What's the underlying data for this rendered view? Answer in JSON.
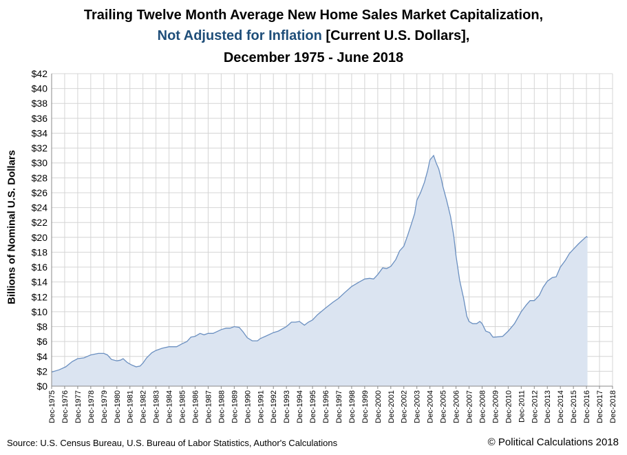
{
  "title": {
    "line1": "Trailing Twelve Month Average New Home Sales Market Capitalization,",
    "line2_accent": "Not Adjusted for Inflation",
    "line2_rest": " [Current U.S. Dollars],",
    "line3": "December 1975 - June 2018"
  },
  "footer": {
    "source": "U.S. Census Bureau, U.S. Bureau of Labor Statistics, Author's Calculations",
    "copyright": "© Political Calculations 2018"
  },
  "colors": {
    "line": "#6a8fc0",
    "fill": "#dbe4f1",
    "grid": "#d4d4d4",
    "axis": "#888888",
    "accent": "#1f4e79"
  },
  "chart_data": {
    "type": "area",
    "title": "Trailing Twelve Month Average New Home Sales Market Capitalization, Not Adjusted for Inflation [Current U.S. Dollars], December 1975 - June 2018",
    "xlabel": "",
    "ylabel": "Billions of Nominal U.S. Dollars",
    "xlim": [
      1975.92,
      2018.92
    ],
    "ylim": [
      0,
      42
    ],
    "grid": true,
    "yticks": [
      0,
      2,
      4,
      6,
      8,
      10,
      12,
      14,
      16,
      18,
      20,
      22,
      24,
      26,
      28,
      30,
      32,
      34,
      36,
      38,
      40,
      42
    ],
    "ytick_labels": [
      "$0",
      "$2",
      "$4",
      "$6",
      "$8",
      "$10",
      "$12",
      "$14",
      "$16",
      "$18",
      "$20",
      "$22",
      "$24",
      "$26",
      "$28",
      "$30",
      "$32",
      "$34",
      "$36",
      "$38",
      "$40",
      "$42"
    ],
    "xtick_labels": [
      "Dec-1975",
      "Dec-1976",
      "Dec-1977",
      "Dec-1978",
      "Dec-1979",
      "Dec-1980",
      "Dec-1981",
      "Dec-1982",
      "Dec-1983",
      "Dec-1984",
      "Dec-1985",
      "Dec-1986",
      "Dec-1987",
      "Dec-1988",
      "Dec-1989",
      "Dec-1990",
      "Dec-1991",
      "Dec-1992",
      "Dec-1993",
      "Dec-1994",
      "Dec-1995",
      "Dec-1996",
      "Dec-1997",
      "Dec-1998",
      "Dec-1999",
      "Dec-2000",
      "Dec-2001",
      "Dec-2002",
      "Dec-2003",
      "Dec-2004",
      "Dec-2005",
      "Dec-2006",
      "Dec-2007",
      "Dec-2008",
      "Dec-2009",
      "Dec-2010",
      "Dec-2011",
      "Dec-2012",
      "Dec-2013",
      "Dec-2014",
      "Dec-2015",
      "Dec-2016",
      "Dec-2017",
      "Dec-2018"
    ],
    "series": [
      {
        "name": "TTM Average New Home Sales Market Capitalization",
        "points": [
          [
            1975.92,
            1.9
          ],
          [
            1976.5,
            2.2
          ],
          [
            1977.0,
            2.6
          ],
          [
            1977.5,
            3.3
          ],
          [
            1977.92,
            3.7
          ],
          [
            1978.4,
            3.8
          ],
          [
            1978.92,
            4.2
          ],
          [
            1979.5,
            4.4
          ],
          [
            1979.92,
            4.4
          ],
          [
            1980.2,
            4.2
          ],
          [
            1980.5,
            3.6
          ],
          [
            1980.92,
            3.4
          ],
          [
            1981.2,
            3.5
          ],
          [
            1981.4,
            3.7
          ],
          [
            1981.7,
            3.2
          ],
          [
            1982.0,
            2.9
          ],
          [
            1982.4,
            2.6
          ],
          [
            1982.7,
            2.7
          ],
          [
            1982.92,
            3.1
          ],
          [
            1983.2,
            3.8
          ],
          [
            1983.6,
            4.5
          ],
          [
            1983.92,
            4.8
          ],
          [
            1984.4,
            5.1
          ],
          [
            1984.92,
            5.3
          ],
          [
            1985.5,
            5.3
          ],
          [
            1985.92,
            5.7
          ],
          [
            1986.3,
            6.0
          ],
          [
            1986.6,
            6.6
          ],
          [
            1986.92,
            6.7
          ],
          [
            1987.3,
            7.1
          ],
          [
            1987.6,
            6.9
          ],
          [
            1987.92,
            7.1
          ],
          [
            1988.3,
            7.1
          ],
          [
            1988.92,
            7.6
          ],
          [
            1989.3,
            7.8
          ],
          [
            1989.6,
            7.8
          ],
          [
            1989.92,
            8.0
          ],
          [
            1990.3,
            7.9
          ],
          [
            1990.6,
            7.3
          ],
          [
            1990.92,
            6.5
          ],
          [
            1991.3,
            6.1
          ],
          [
            1991.7,
            6.1
          ],
          [
            1991.92,
            6.4
          ],
          [
            1992.3,
            6.7
          ],
          [
            1992.92,
            7.2
          ],
          [
            1993.3,
            7.4
          ],
          [
            1993.92,
            8.0
          ],
          [
            1994.3,
            8.6
          ],
          [
            1994.6,
            8.6
          ],
          [
            1994.92,
            8.7
          ],
          [
            1995.3,
            8.2
          ],
          [
            1995.6,
            8.6
          ],
          [
            1995.92,
            8.9
          ],
          [
            1996.3,
            9.6
          ],
          [
            1996.92,
            10.5
          ],
          [
            1997.5,
            11.3
          ],
          [
            1997.92,
            11.8
          ],
          [
            1998.4,
            12.6
          ],
          [
            1998.92,
            13.4
          ],
          [
            1999.5,
            14.0
          ],
          [
            1999.92,
            14.4
          ],
          [
            2000.3,
            14.5
          ],
          [
            2000.6,
            14.4
          ],
          [
            2000.92,
            15.0
          ],
          [
            2001.3,
            15.9
          ],
          [
            2001.6,
            15.8
          ],
          [
            2001.92,
            16.1
          ],
          [
            2002.3,
            17.0
          ],
          [
            2002.6,
            18.2
          ],
          [
            2002.92,
            18.8
          ],
          [
            2003.2,
            20.2
          ],
          [
            2003.5,
            21.8
          ],
          [
            2003.75,
            23.2
          ],
          [
            2003.92,
            25.0
          ],
          [
            2004.2,
            26.0
          ],
          [
            2004.5,
            27.4
          ],
          [
            2004.75,
            29.0
          ],
          [
            2004.92,
            30.4
          ],
          [
            2005.2,
            31.0
          ],
          [
            2005.4,
            30.0
          ],
          [
            2005.6,
            29.2
          ],
          [
            2005.8,
            27.8
          ],
          [
            2005.92,
            26.8
          ],
          [
            2006.2,
            25.0
          ],
          [
            2006.5,
            22.8
          ],
          [
            2006.75,
            20.2
          ],
          [
            2006.92,
            17.5
          ],
          [
            2007.2,
            14.2
          ],
          [
            2007.5,
            11.8
          ],
          [
            2007.75,
            9.4
          ],
          [
            2007.92,
            8.7
          ],
          [
            2008.2,
            8.4
          ],
          [
            2008.5,
            8.4
          ],
          [
            2008.75,
            8.7
          ],
          [
            2008.92,
            8.4
          ],
          [
            2009.2,
            7.4
          ],
          [
            2009.5,
            7.2
          ],
          [
            2009.75,
            6.6
          ],
          [
            2009.92,
            6.6
          ],
          [
            2010.5,
            6.7
          ],
          [
            2010.92,
            7.4
          ],
          [
            2011.4,
            8.4
          ],
          [
            2011.92,
            10.0
          ],
          [
            2012.3,
            10.9
          ],
          [
            2012.6,
            11.5
          ],
          [
            2012.92,
            11.5
          ],
          [
            2013.3,
            12.2
          ],
          [
            2013.6,
            13.3
          ],
          [
            2013.92,
            14.1
          ],
          [
            2014.3,
            14.6
          ],
          [
            2014.6,
            14.7
          ],
          [
            2014.92,
            16.0
          ],
          [
            2015.3,
            16.9
          ],
          [
            2015.6,
            17.8
          ],
          [
            2015.92,
            18.4
          ],
          [
            2016.3,
            19.1
          ],
          [
            2016.6,
            19.6
          ],
          [
            2016.92,
            20.1
          ],
          [
            2017.0,
            20.0
          ]
        ]
      }
    ]
  }
}
